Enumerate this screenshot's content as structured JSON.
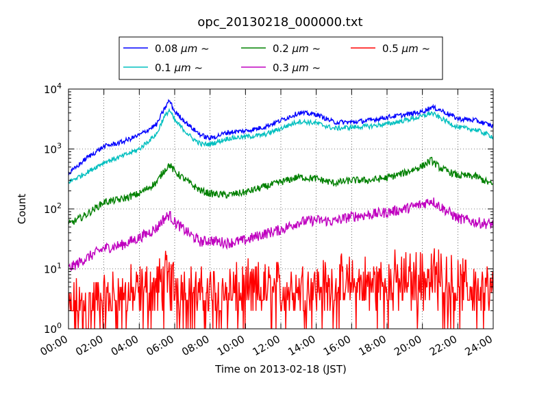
{
  "chart_data": {
    "type": "line",
    "title": "opc_20130218_000000.txt",
    "xlabel": "Time on 2013-02-18 (JST)",
    "ylabel": "Count",
    "y_scale": "log",
    "ylim": [
      1,
      10000
    ],
    "xlim": [
      "00:00",
      "24:00"
    ],
    "y_ticks": [
      {
        "base": "10",
        "exp": "0",
        "value": 1
      },
      {
        "base": "10",
        "exp": "1",
        "value": 10
      },
      {
        "base": "10",
        "exp": "2",
        "value": 100
      },
      {
        "base": "10",
        "exp": "3",
        "value": 1000
      },
      {
        "base": "10",
        "exp": "4",
        "value": 10000
      }
    ],
    "x_ticks": [
      {
        "label": "00:00",
        "hour": 0
      },
      {
        "label": "02:00",
        "hour": 2
      },
      {
        "label": "04:00",
        "hour": 4
      },
      {
        "label": "06:00",
        "hour": 6
      },
      {
        "label": "08:00",
        "hour": 8
      },
      {
        "label": "10:00",
        "hour": 10
      },
      {
        "label": "12:00",
        "hour": 12
      },
      {
        "label": "14:00",
        "hour": 14
      },
      {
        "label": "16:00",
        "hour": 16
      },
      {
        "label": "18:00",
        "hour": 18
      },
      {
        "label": "20:00",
        "hour": 20
      },
      {
        "label": "22:00",
        "hour": 22
      },
      {
        "label": "24:00",
        "hour": 24
      }
    ],
    "grid": true,
    "legend_position": "top-center",
    "x": [
      0,
      1,
      2,
      3,
      4,
      5,
      5.3,
      5.7,
      6,
      7,
      7.5,
      8,
      9,
      10,
      11,
      12,
      13,
      14,
      15,
      16,
      17,
      18,
      19,
      20,
      20.5,
      21,
      22,
      23,
      24
    ],
    "series": [
      {
        "name": "0.08",
        "unit": "μm",
        "suffix": "~",
        "color": "#0000ff",
        "noise": 0.04,
        "values": [
          380,
          700,
          1100,
          1300,
          1700,
          2600,
          4000,
          6500,
          4200,
          2200,
          1700,
          1500,
          1900,
          2000,
          2300,
          3000,
          4000,
          3800,
          2800,
          2800,
          3000,
          3400,
          3700,
          4200,
          5000,
          4500,
          3200,
          3000,
          2400
        ]
      },
      {
        "name": "0.1",
        "unit": "μm",
        "suffix": "~",
        "color": "#00bfbf",
        "noise": 0.04,
        "values": [
          280,
          400,
          600,
          750,
          1000,
          1800,
          3000,
          4500,
          3000,
          1500,
          1200,
          1200,
          1500,
          1600,
          1700,
          2200,
          2900,
          2700,
          2200,
          2300,
          2400,
          2600,
          3000,
          3500,
          4000,
          3300,
          2300,
          2100,
          1600
        ]
      },
      {
        "name": "0.2",
        "unit": "μm",
        "suffix": "~",
        "color": "#008000",
        "noise": 0.06,
        "values": [
          55,
          80,
          130,
          145,
          180,
          280,
          400,
          550,
          420,
          250,
          200,
          180,
          170,
          190,
          230,
          280,
          340,
          320,
          270,
          300,
          300,
          330,
          400,
          520,
          650,
          480,
          360,
          350,
          250
        ]
      },
      {
        "name": "0.3",
        "unit": "μm",
        "suffix": "~",
        "color": "#bf00bf",
        "noise": 0.09,
        "values": [
          10,
          15,
          22,
          25,
          33,
          48,
          65,
          80,
          60,
          35,
          28,
          30,
          27,
          30,
          38,
          45,
          60,
          65,
          62,
          75,
          80,
          88,
          100,
          120,
          140,
          110,
          70,
          60,
          55
        ]
      },
      {
        "name": "0.5",
        "unit": "μm",
        "suffix": "~",
        "color": "#ff0000",
        "noise": 0.35,
        "values": [
          2,
          2.5,
          3,
          3.5,
          4,
          5,
          6,
          7,
          5.5,
          4,
          3.5,
          4,
          4,
          4,
          4.5,
          4.5,
          5,
          5,
          5,
          5.5,
          5.5,
          6,
          6.5,
          7,
          9,
          7,
          5,
          5,
          4
        ]
      }
    ]
  }
}
